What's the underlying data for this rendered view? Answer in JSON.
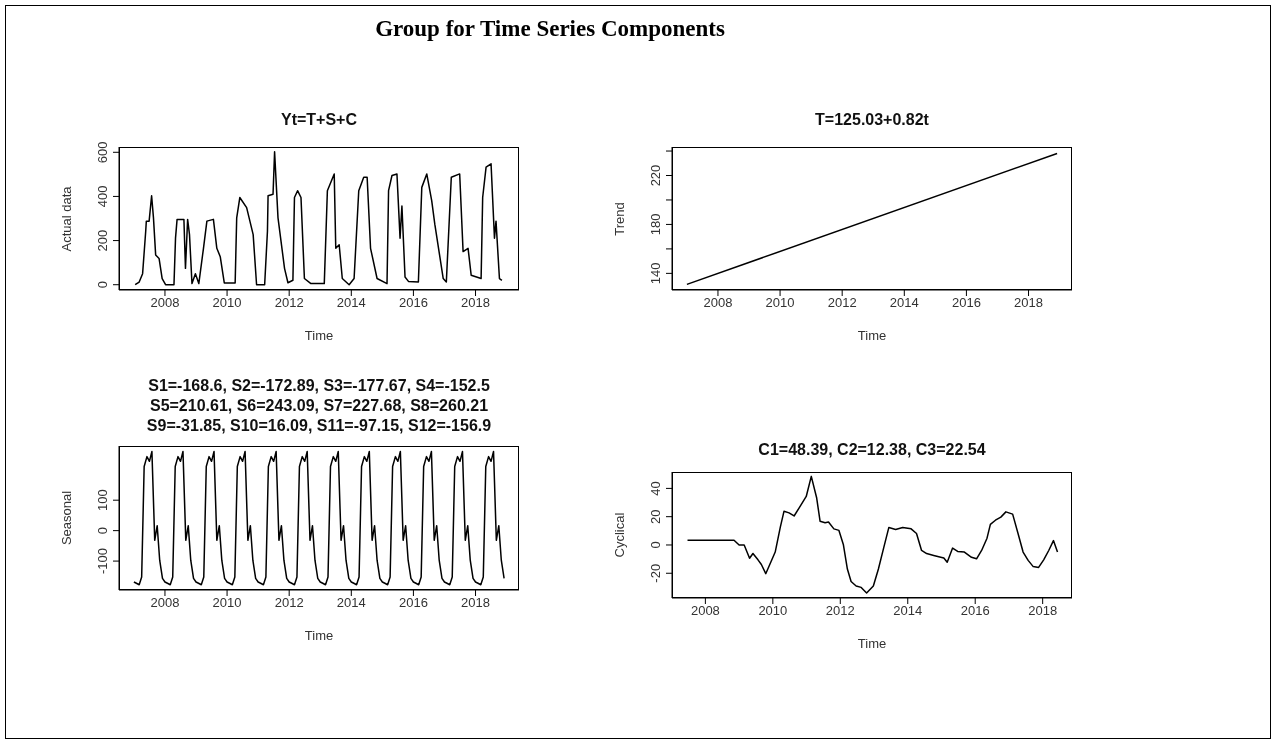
{
  "chart_data": [
    {
      "type": "line",
      "title": "Yt=T+S+C",
      "xlabel": "Time",
      "ylabel": "Actual data",
      "annotations": [
        "Group for Time Series Components"
      ],
      "color": "#000000",
      "marker": "none",
      "x": [
        2007.04,
        2007.17,
        2007.28,
        2007.38,
        2007.4,
        2007.49,
        2007.57,
        2007.63,
        2007.7,
        2007.81,
        2007.91,
        2008.02,
        2008.29,
        2008.34,
        2008.39,
        2008.61,
        2008.66,
        2008.73,
        2008.79,
        2008.87,
        2008.98,
        2009.09,
        2009.24,
        2009.35,
        2009.56,
        2009.67,
        2009.78,
        2009.91,
        2010.26,
        2010.31,
        2010.41,
        2010.63,
        2010.84,
        2010.95,
        2011.21,
        2011.3,
        2011.32,
        2011.48,
        2011.53,
        2011.64,
        2011.85,
        2011.96,
        2012.12,
        2012.17,
        2012.27,
        2012.38,
        2012.49,
        2012.7,
        2013.13,
        2013.23,
        2013.45,
        2013.5,
        2013.61,
        2013.71,
        2013.93,
        2014.09,
        2014.24,
        2014.4,
        2014.51,
        2014.62,
        2014.83,
        2015.15,
        2015.2,
        2015.31,
        2015.47,
        2015.57,
        2015.63,
        2015.73,
        2015.84,
        2016.16,
        2016.27,
        2016.43,
        2016.59,
        2016.69,
        2016.96,
        2017.06,
        2017.22,
        2017.49,
        2017.6,
        2017.76,
        2017.86,
        2018.18,
        2018.23,
        2018.34,
        2018.5,
        2018.61,
        2018.66,
        2018.77,
        2018.85
      ],
      "values": [
        0,
        12,
        50,
        242,
        288,
        288,
        403,
        303,
        135,
        119,
        28,
        0,
        0,
        211,
        296,
        296,
        74,
        296,
        227,
        5,
        50,
        5,
        165,
        288,
        296,
        165,
        127,
        8,
        8,
        303,
        395,
        349,
        227,
        0,
        0,
        242,
        403,
        410,
        602,
        303,
        74,
        9,
        20,
        395,
        426,
        395,
        28,
        5,
        5,
        426,
        502,
        165,
        181,
        28,
        0,
        28,
        426,
        487,
        487,
        165,
        28,
        5,
        426,
        495,
        502,
        211,
        357,
        35,
        15,
        12,
        441,
        502,
        380,
        273,
        28,
        12,
        487,
        502,
        150,
        165,
        43,
        28,
        395,
        533,
        548,
        211,
        288,
        28,
        20
      ],
      "xlim": [
        2006.52,
        2019.4
      ],
      "xticks": [
        2008,
        2010,
        2012,
        2014,
        2016,
        2018
      ],
      "ylim": [
        -24,
        624
      ],
      "yticks": [
        0,
        200,
        400,
        600
      ]
    },
    {
      "type": "line",
      "title": "T=125.03+0.82t",
      "xlabel": "Time",
      "ylabel": "Trend",
      "color": "#000000",
      "marker": "none",
      "x": [
        2007,
        2018.92
      ],
      "values": [
        131,
        238
      ],
      "xlim": [
        2006.52,
        2019.4
      ],
      "xticks": [
        2008,
        2010,
        2012,
        2014,
        2016,
        2018
      ],
      "ylim": [
        126.4,
        243.3
      ],
      "yticks": [
        140,
        {
          "value": 160,
          "label": null
        },
        180,
        {
          "value": 200,
          "label": null
        },
        220,
        {
          "value": 240,
          "label": null
        }
      ]
    },
    {
      "type": "line",
      "title": "S1=-168.6, S2=-172.89, S3=-177.67, S4=-152.5\nS5=210.61, S6=243.09, S7=227.68, S8=260.21\nS9=-31.85, S10=16.09, S11=-97.15, S12=-156.9",
      "xlabel": "Time",
      "ylabel": "Seasonal",
      "color": "#000000",
      "marker": "none",
      "x": [
        2007,
        2007.08,
        2007.17,
        2007.25,
        2007.33,
        2007.42,
        2007.5,
        2007.58,
        2007.67,
        2007.75,
        2007.83,
        2007.92,
        2008,
        2008.08,
        2008.17,
        2008.25,
        2008.33,
        2008.42,
        2008.5,
        2008.58,
        2008.67,
        2008.75,
        2008.83,
        2008.92,
        2009,
        2009.08,
        2009.17,
        2009.25,
        2009.33,
        2009.42,
        2009.5,
        2009.58,
        2009.67,
        2009.75,
        2009.83,
        2009.92,
        2010,
        2010.08,
        2010.17,
        2010.25,
        2010.33,
        2010.42,
        2010.5,
        2010.58,
        2010.67,
        2010.75,
        2010.83,
        2010.92,
        2011,
        2011.08,
        2011.17,
        2011.25,
        2011.33,
        2011.42,
        2011.5,
        2011.58,
        2011.67,
        2011.75,
        2011.83,
        2011.92,
        2012,
        2012.08,
        2012.17,
        2012.25,
        2012.33,
        2012.42,
        2012.5,
        2012.58,
        2012.67,
        2012.75,
        2012.83,
        2012.92,
        2013,
        2013.08,
        2013.17,
        2013.25,
        2013.33,
        2013.42,
        2013.5,
        2013.58,
        2013.67,
        2013.75,
        2013.83,
        2013.92,
        2014,
        2014.08,
        2014.17,
        2014.25,
        2014.33,
        2014.42,
        2014.5,
        2014.58,
        2014.67,
        2014.75,
        2014.83,
        2014.92,
        2015,
        2015.08,
        2015.17,
        2015.25,
        2015.33,
        2015.42,
        2015.5,
        2015.58,
        2015.67,
        2015.75,
        2015.83,
        2015.92,
        2016,
        2016.08,
        2016.17,
        2016.25,
        2016.33,
        2016.42,
        2016.5,
        2016.58,
        2016.67,
        2016.75,
        2016.83,
        2016.92,
        2017,
        2017.08,
        2017.17,
        2017.25,
        2017.33,
        2017.42,
        2017.5,
        2017.58,
        2017.67,
        2017.75,
        2017.83,
        2017.92,
        2018,
        2018.08,
        2018.17,
        2018.25,
        2018.33,
        2018.42,
        2018.5,
        2018.58,
        2018.67,
        2018.75,
        2018.83,
        2018.92
      ],
      "values": [
        -168.6,
        -172.89,
        -177.67,
        -152.5,
        210.61,
        243.09,
        227.68,
        260.21,
        -31.85,
        16.09,
        -97.15,
        -156.9,
        -168.6,
        -172.89,
        -177.67,
        -152.5,
        210.61,
        243.09,
        227.68,
        260.21,
        -31.85,
        16.09,
        -97.15,
        -156.9,
        -168.6,
        -172.89,
        -177.67,
        -152.5,
        210.61,
        243.09,
        227.68,
        260.21,
        -31.85,
        16.09,
        -97.15,
        -156.9,
        -168.6,
        -172.89,
        -177.67,
        -152.5,
        210.61,
        243.09,
        227.68,
        260.21,
        -31.85,
        16.09,
        -97.15,
        -156.9,
        -168.6,
        -172.89,
        -177.67,
        -152.5,
        210.61,
        243.09,
        227.68,
        260.21,
        -31.85,
        16.09,
        -97.15,
        -156.9,
        -168.6,
        -172.89,
        -177.67,
        -152.5,
        210.61,
        243.09,
        227.68,
        260.21,
        -31.85,
        16.09,
        -97.15,
        -156.9,
        -168.6,
        -172.89,
        -177.67,
        -152.5,
        210.61,
        243.09,
        227.68,
        260.21,
        -31.85,
        16.09,
        -97.15,
        -156.9,
        -168.6,
        -172.89,
        -177.67,
        -152.5,
        210.61,
        243.09,
        227.68,
        260.21,
        -31.85,
        16.09,
        -97.15,
        -156.9,
        -168.6,
        -172.89,
        -177.67,
        -152.5,
        210.61,
        243.09,
        227.68,
        260.21,
        -31.85,
        16.09,
        -97.15,
        -156.9,
        -168.6,
        -172.89,
        -177.67,
        -152.5,
        210.61,
        243.09,
        227.68,
        260.21,
        -31.85,
        16.09,
        -97.15,
        -156.9,
        -168.6,
        -172.89,
        -177.67,
        -152.5,
        210.61,
        243.09,
        227.68,
        260.21,
        -31.85,
        16.09,
        -97.15,
        -156.9,
        -168.6,
        -172.89,
        -177.67,
        -152.5,
        210.61,
        243.09,
        227.68,
        260.21,
        -31.85,
        16.09,
        -97.15,
        -156.9
      ],
      "xlim": [
        2006.52,
        2019.4
      ],
      "xticks": [
        2008,
        2010,
        2012,
        2014,
        2016,
        2018
      ],
      "ylim": [
        -195,
        278
      ],
      "yticks": [
        -100,
        0,
        100
      ]
    },
    {
      "type": "line",
      "title": "C1=48.39, C2=12.38, C3=22.54",
      "xlabel": "Time",
      "ylabel": "Cyclical",
      "color": "#000000",
      "marker": "none",
      "x": [
        2007.47,
        2008.85,
        2009.0,
        2009.15,
        2009.31,
        2009.41,
        2009.56,
        2009.66,
        2009.79,
        2010.07,
        2010.22,
        2010.33,
        2010.48,
        2010.63,
        2010.79,
        2010.99,
        2011.14,
        2011.3,
        2011.4,
        2011.55,
        2011.65,
        2011.81,
        2011.96,
        2012.09,
        2012.21,
        2012.32,
        2012.47,
        2012.62,
        2012.78,
        2012.98,
        2013.13,
        2013.29,
        2013.44,
        2013.64,
        2013.85,
        2014.1,
        2014.26,
        2014.41,
        2014.56,
        2014.77,
        2015.07,
        2015.17,
        2015.33,
        2015.48,
        2015.68,
        2015.89,
        2016.04,
        2016.19,
        2016.35,
        2016.45,
        2016.6,
        2016.76,
        2016.91,
        2017.11,
        2017.27,
        2017.42,
        2017.57,
        2017.72,
        2017.88,
        2018.03,
        2018.18,
        2018.32,
        2018.44
      ],
      "values": [
        3.3,
        3.3,
        0,
        0,
        -9.4,
        -6,
        -10.5,
        -13.8,
        -20.3,
        -5,
        12.4,
        23.8,
        22.7,
        20.5,
        26.6,
        34.3,
        48.5,
        33.2,
        16.8,
        15.7,
        16.2,
        11.4,
        10.3,
        0.4,
        -17,
        -25.8,
        -29,
        -30,
        -34,
        -29,
        -17,
        -1.7,
        12.4,
        10.9,
        12.4,
        11.4,
        8.1,
        -3.9,
        -6.1,
        -7.4,
        -9.2,
        -12.2,
        -2.2,
        -4.6,
        -5,
        -8.7,
        -9.8,
        -3.9,
        4.8,
        14.6,
        17.5,
        19.7,
        23.4,
        21.8,
        8.1,
        -5,
        -10.9,
        -15.3,
        -15.9,
        -10.5,
        -3.9,
        3.1,
        -5
      ],
      "xlim": [
        2007.01,
        2018.87
      ],
      "xticks": [
        2008,
        2010,
        2012,
        2014,
        2016,
        2018
      ],
      "ylim": [
        -37.5,
        51.6
      ],
      "yticks": [
        -20,
        0,
        20,
        40
      ]
    }
  ]
}
